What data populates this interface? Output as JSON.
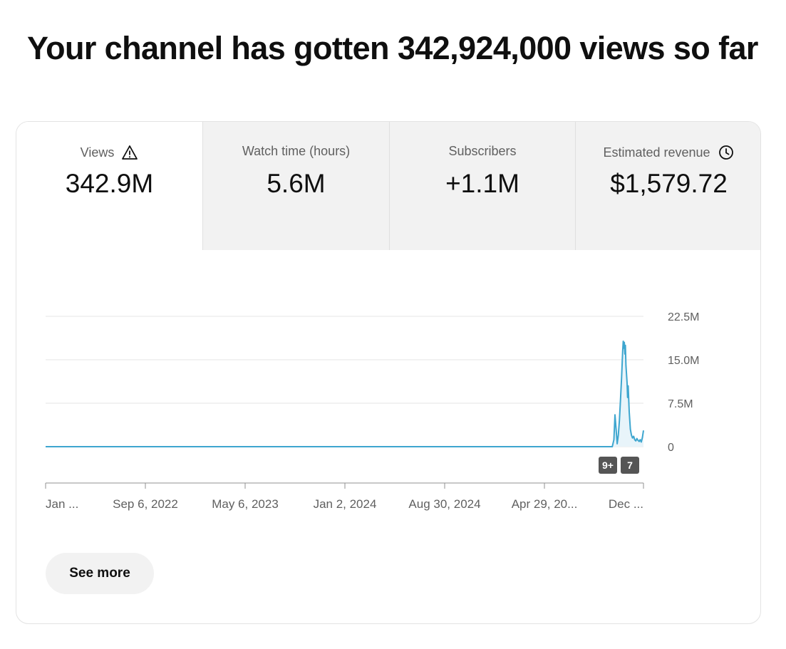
{
  "headline": "Your channel has gotten 342,924,000 views so far",
  "tabs": [
    {
      "label": "Views",
      "value": "342.9M",
      "icon": "warning-icon",
      "active": true
    },
    {
      "label": "Watch time (hours)",
      "value": "5.6M",
      "active": false
    },
    {
      "label": "Subscribers",
      "value": "+1.1M",
      "active": false
    },
    {
      "label": "Estimated revenue",
      "value": "$1,579.72",
      "icon": "clock-icon",
      "active": false
    }
  ],
  "colors": {
    "line": "#3ea6cf",
    "area": "#e8f4fa",
    "inactive_tab": "#f2f2f2",
    "marker_bg": "#555555"
  },
  "chart_data": {
    "type": "line",
    "series": [
      {
        "values": [
          [
            0,
            0
          ],
          [
            1000,
            0
          ],
          [
            1035,
            0
          ],
          [
            1038,
            1.2
          ],
          [
            1040,
            5.5
          ],
          [
            1042,
            3.0
          ],
          [
            1044,
            0.5
          ],
          [
            1046,
            2.0
          ],
          [
            1048,
            4.5
          ],
          [
            1050,
            8.0
          ],
          [
            1052,
            12.0
          ],
          [
            1054,
            16.5
          ],
          [
            1055,
            18.2
          ],
          [
            1056,
            17.0
          ],
          [
            1057,
            18.0
          ],
          [
            1058,
            16.0
          ],
          [
            1059,
            17.5
          ],
          [
            1060,
            14.0
          ],
          [
            1062,
            11.0
          ],
          [
            1063,
            8.5
          ],
          [
            1064,
            10.5
          ],
          [
            1066,
            6.0
          ],
          [
            1068,
            3.0
          ],
          [
            1070,
            2.0
          ],
          [
            1072,
            1.5
          ],
          [
            1074,
            1.8
          ],
          [
            1076,
            1.2
          ],
          [
            1078,
            1.0
          ],
          [
            1080,
            1.4
          ],
          [
            1082,
            1.1
          ],
          [
            1084,
            0.9
          ],
          [
            1086,
            1.2
          ],
          [
            1088,
            0.8
          ],
          [
            1090,
            1.6
          ],
          [
            1092,
            2.8
          ]
        ]
      }
    ],
    "x_ticks": [
      "Jan ...",
      "Sep 6, 2022",
      "May 6, 2023",
      "Jan 2, 2024",
      "Aug 30, 2024",
      "Apr 29, 20...",
      "Dec ..."
    ],
    "y_ticks": [
      "22.5M",
      "15.0M",
      "7.5M",
      "0"
    ],
    "ylim": [
      0,
      22.5
    ],
    "xlim": [
      0,
      1092
    ],
    "grid": true,
    "markers": [
      "9+",
      "7"
    ]
  },
  "see_more": "See more"
}
